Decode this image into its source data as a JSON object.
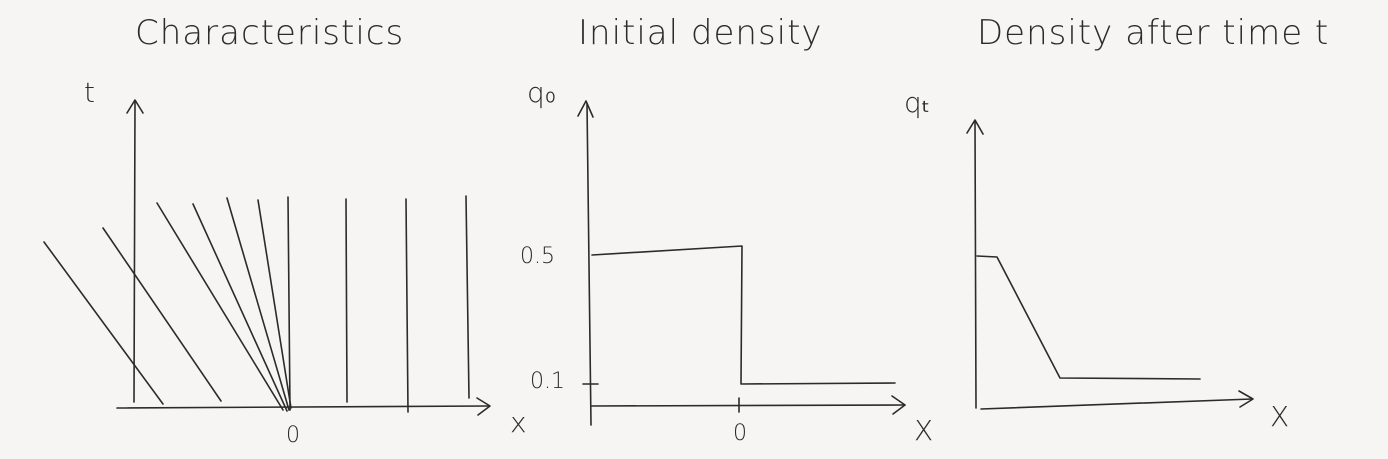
{
  "panels": {
    "characteristics": {
      "title": "Characteristics",
      "y_axis_label": "t",
      "x_axis_label": "x",
      "origin_label": "0"
    },
    "initial_density": {
      "title": "Initial density",
      "y_axis_label": "q₀",
      "x_axis_label": "X",
      "origin_label": "0",
      "level_high_label": "0.5",
      "level_low_label": "0.1"
    },
    "density_after": {
      "title": "Density after time t",
      "y_axis_label": "qₜ",
      "x_axis_label": "X"
    }
  },
  "colors": {
    "ink": "#2b2b2b",
    "paper": "#f6f5f3"
  }
}
